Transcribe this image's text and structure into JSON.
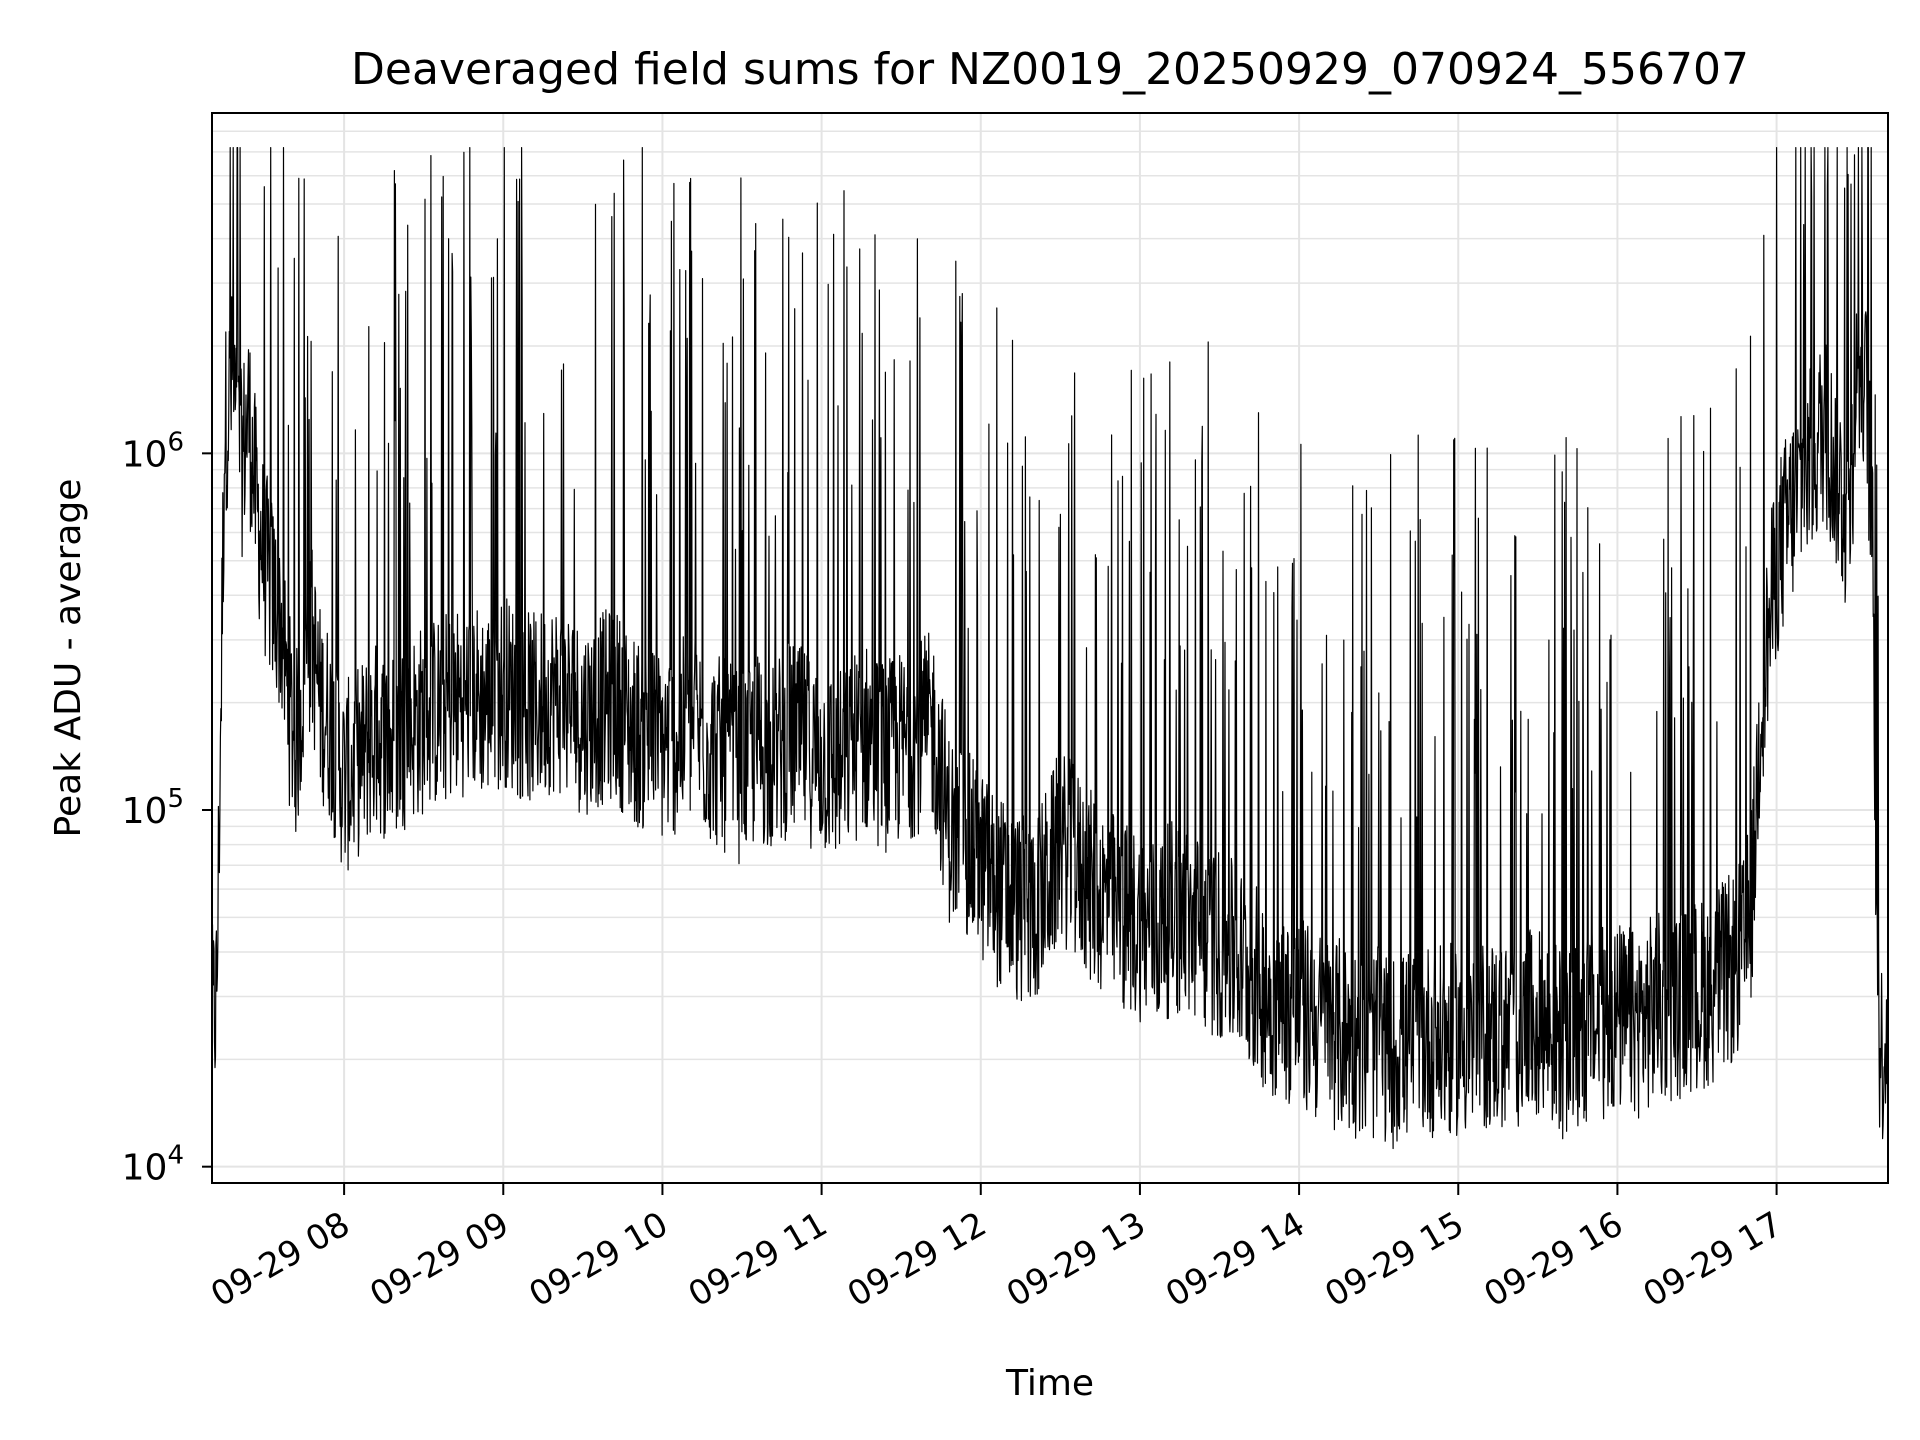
{
  "chart_data": {
    "type": "line",
    "title": "Deaveraged field sums for NZ0019_20250929_070924_556707",
    "xlabel": "Time",
    "ylabel": "Peak ADU - average",
    "yscale": "log",
    "ylim": [
      9000,
      9000000
    ],
    "xlim_hours": [
      7.17,
      17.7
    ],
    "x_ticks": [
      {
        "hour": 8,
        "label": "09-29 08"
      },
      {
        "hour": 9,
        "label": "09-29 09"
      },
      {
        "hour": 10,
        "label": "09-29 10"
      },
      {
        "hour": 11,
        "label": "09-29 11"
      },
      {
        "hour": 12,
        "label": "09-29 12"
      },
      {
        "hour": 13,
        "label": "09-29 13"
      },
      {
        "hour": 14,
        "label": "09-29 14"
      },
      {
        "hour": 15,
        "label": "09-29 15"
      },
      {
        "hour": 16,
        "label": "09-29 16"
      },
      {
        "hour": 17,
        "label": "09-29 17"
      }
    ],
    "y_ticks": [
      {
        "value": 10000,
        "base": "10",
        "exp": "4"
      },
      {
        "value": 100000,
        "base": "10",
        "exp": "5"
      },
      {
        "value": 1000000,
        "base": "10",
        "exp": "6"
      }
    ],
    "grid": true,
    "line_color": "#000000",
    "series": [
      {
        "name": "Deaveraged field sum",
        "x_hours": [
          7.17,
          7.2,
          7.25,
          7.3,
          7.35,
          7.4,
          7.45,
          7.5,
          7.55,
          7.6,
          7.65,
          7.7,
          7.75,
          7.8,
          7.85,
          7.9,
          7.95,
          8.0,
          8.1,
          8.2,
          8.3,
          8.4,
          8.5,
          8.6,
          8.7,
          8.8,
          8.9,
          9.0,
          9.1,
          9.2,
          9.3,
          9.4,
          9.5,
          9.6,
          9.7,
          9.8,
          9.9,
          10.0,
          10.1,
          10.2,
          10.3,
          10.4,
          10.5,
          10.6,
          10.7,
          10.8,
          10.9,
          11.0,
          11.1,
          11.2,
          11.3,
          11.4,
          11.5,
          11.6,
          11.7,
          11.8,
          11.9,
          12.0,
          12.1,
          12.2,
          12.3,
          12.4,
          12.5,
          12.6,
          12.7,
          12.8,
          12.9,
          13.0,
          13.1,
          13.2,
          13.3,
          13.4,
          13.5,
          13.6,
          13.7,
          13.8,
          13.9,
          14.0,
          14.1,
          14.2,
          14.3,
          14.4,
          14.5,
          14.6,
          14.7,
          14.8,
          14.9,
          15.0,
          15.1,
          15.2,
          15.3,
          15.4,
          15.5,
          15.6,
          15.7,
          15.8,
          15.9,
          16.0,
          16.1,
          16.2,
          16.3,
          16.4,
          16.5,
          16.6,
          16.7,
          16.8,
          16.85,
          16.9,
          17.0,
          17.1,
          17.2,
          17.3,
          17.4,
          17.45,
          17.5,
          17.55,
          17.6,
          17.62,
          17.65,
          17.7
        ],
        "y": [
          25000,
          30000,
          1200000,
          1600000,
          900000,
          1300000,
          700000,
          500000,
          400000,
          350000,
          200000,
          150000,
          250000,
          300000,
          200000,
          180000,
          150000,
          120000,
          140000,
          160000,
          150000,
          170000,
          180000,
          190000,
          200000,
          210000,
          200000,
          220000,
          200000,
          190000,
          210000,
          200000,
          180000,
          190000,
          200000,
          170000,
          160000,
          150000,
          160000,
          170000,
          150000,
          140000,
          130000,
          150000,
          140000,
          160000,
          150000,
          140000,
          130000,
          150000,
          160000,
          140000,
          150000,
          160000,
          170000,
          90000,
          80000,
          70000,
          60000,
          55000,
          50000,
          60000,
          80000,
          70000,
          60000,
          55000,
          50000,
          48000,
          45000,
          50000,
          48000,
          45000,
          42000,
          38000,
          35000,
          30000,
          28000,
          27000,
          25000,
          24000,
          23000,
          22000,
          22000,
          21000,
          22000,
          23000,
          22000,
          23000,
          22000,
          24000,
          23000,
          24000,
          25000,
          23000,
          22000,
          24000,
          25000,
          26000,
          25000,
          27000,
          28000,
          29000,
          30000,
          32000,
          35000,
          40000,
          60000,
          200000,
          500000,
          700000,
          900000,
          1200000,
          800000,
          600000,
          1500000,
          1800000,
          700000,
          100000,
          20000,
          25000
        ]
      }
    ]
  }
}
